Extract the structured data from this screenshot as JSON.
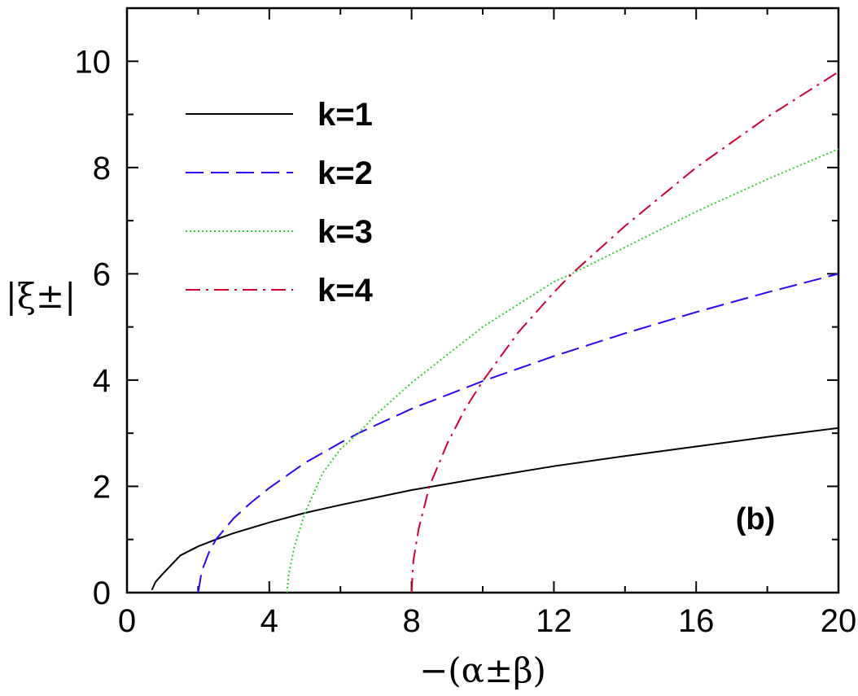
{
  "chart_data": {
    "type": "line",
    "xlabel": "−(α±β)",
    "ylabel": "|ξ±|",
    "xlim": [
      0,
      20
    ],
    "ylim": [
      0,
      11
    ],
    "xticks": [
      0,
      4,
      8,
      12,
      16,
      20
    ],
    "yticks": [
      0,
      2,
      4,
      6,
      8,
      10
    ],
    "grid": false,
    "legend_position": "top-left",
    "annotation": "(b)",
    "series": [
      {
        "name": "k=1",
        "color": "#000000",
        "dash": "solid",
        "x": [
          0.7,
          0.8,
          1,
          1.5,
          2,
          2.5,
          3,
          4,
          5,
          6,
          8,
          10,
          12,
          14,
          16,
          18,
          20
        ],
        "y": [
          0.05,
          0.2,
          0.35,
          0.7,
          0.87,
          1.0,
          1.12,
          1.32,
          1.5,
          1.65,
          1.93,
          2.16,
          2.38,
          2.57,
          2.75,
          2.93,
          3.1
        ]
      },
      {
        "name": "k=2",
        "color": "#3300ff",
        "dash": "long-dash",
        "x": [
          2,
          2.1,
          2.3,
          2.5,
          3,
          3.5,
          4,
          5,
          6,
          6.5,
          8,
          10,
          12,
          14,
          16,
          18,
          20
        ],
        "y": [
          0,
          0.4,
          0.75,
          1.0,
          1.4,
          1.7,
          1.97,
          2.44,
          2.82,
          3.0,
          3.46,
          3.98,
          4.45,
          4.88,
          5.28,
          5.65,
          6.0
        ]
      },
      {
        "name": "k=3",
        "color": "#33cc33",
        "dash": "dotted",
        "x": [
          4.5,
          4.55,
          4.7,
          5,
          5.5,
          6,
          6.5,
          7,
          8,
          10,
          12,
          12.5,
          14,
          16,
          18,
          20
        ],
        "y": [
          0,
          0.35,
          0.85,
          1.5,
          2.25,
          2.7,
          3.0,
          3.35,
          3.95,
          5.0,
          5.85,
          6.0,
          6.5,
          7.17,
          7.78,
          8.35
        ]
      },
      {
        "name": "k=4",
        "color": "#cc0033",
        "dash": "dash-dot",
        "x": [
          8,
          8.05,
          8.2,
          8.5,
          9,
          9.5,
          10,
          11,
          12,
          12.5,
          14,
          16,
          18,
          20
        ],
        "y": [
          0,
          0.6,
          1.2,
          2.0,
          2.8,
          3.45,
          3.98,
          4.9,
          5.65,
          6.0,
          6.9,
          8.0,
          8.95,
          9.8
        ]
      }
    ]
  }
}
